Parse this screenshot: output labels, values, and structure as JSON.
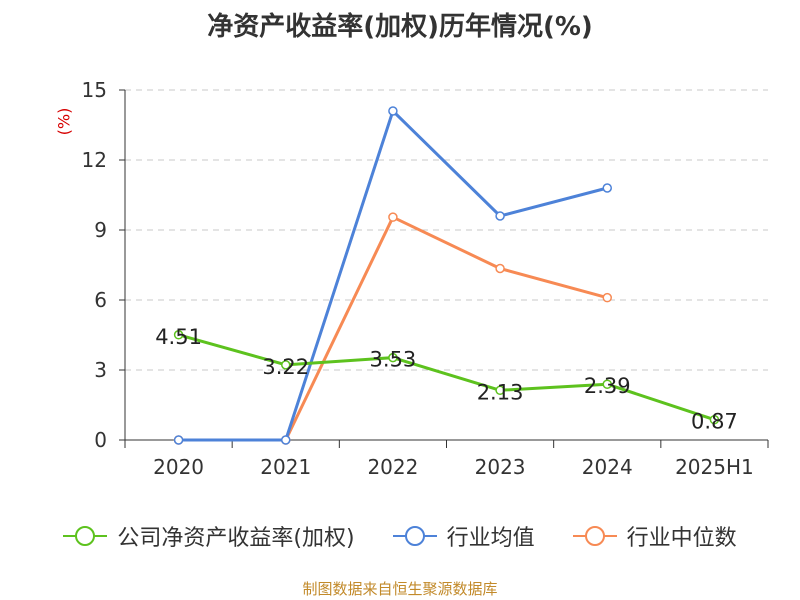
{
  "chart_data": {
    "type": "line",
    "title": "净资产收益率(加权)历年情况(%)",
    "ylabel": "(%)",
    "categories": [
      "2020",
      "2021",
      "2022",
      "2023",
      "2024",
      "2025H1"
    ],
    "yticks": [
      0,
      3,
      6,
      9,
      12,
      15
    ],
    "ylim": [
      0,
      15
    ],
    "grid": true,
    "legend_position": "bottom",
    "source": "制图数据来自恒生聚源数据库",
    "series": [
      {
        "name": "公司净资产收益率(加权)",
        "color": "#5dc21e",
        "values": [
          4.51,
          3.22,
          3.53,
          2.13,
          2.39,
          0.87
        ],
        "labels": [
          "4.51",
          "3.22",
          "3.53",
          "2.13",
          "2.39",
          "0.87"
        ]
      },
      {
        "name": "行业均值",
        "color": "#4d82d8",
        "values": [
          0,
          0,
          14.1,
          9.6,
          10.8,
          null
        ]
      },
      {
        "name": "行业中位数",
        "color": "#f78a54",
        "values": [
          0,
          0,
          9.55,
          7.35,
          6.1,
          null
        ]
      }
    ]
  }
}
